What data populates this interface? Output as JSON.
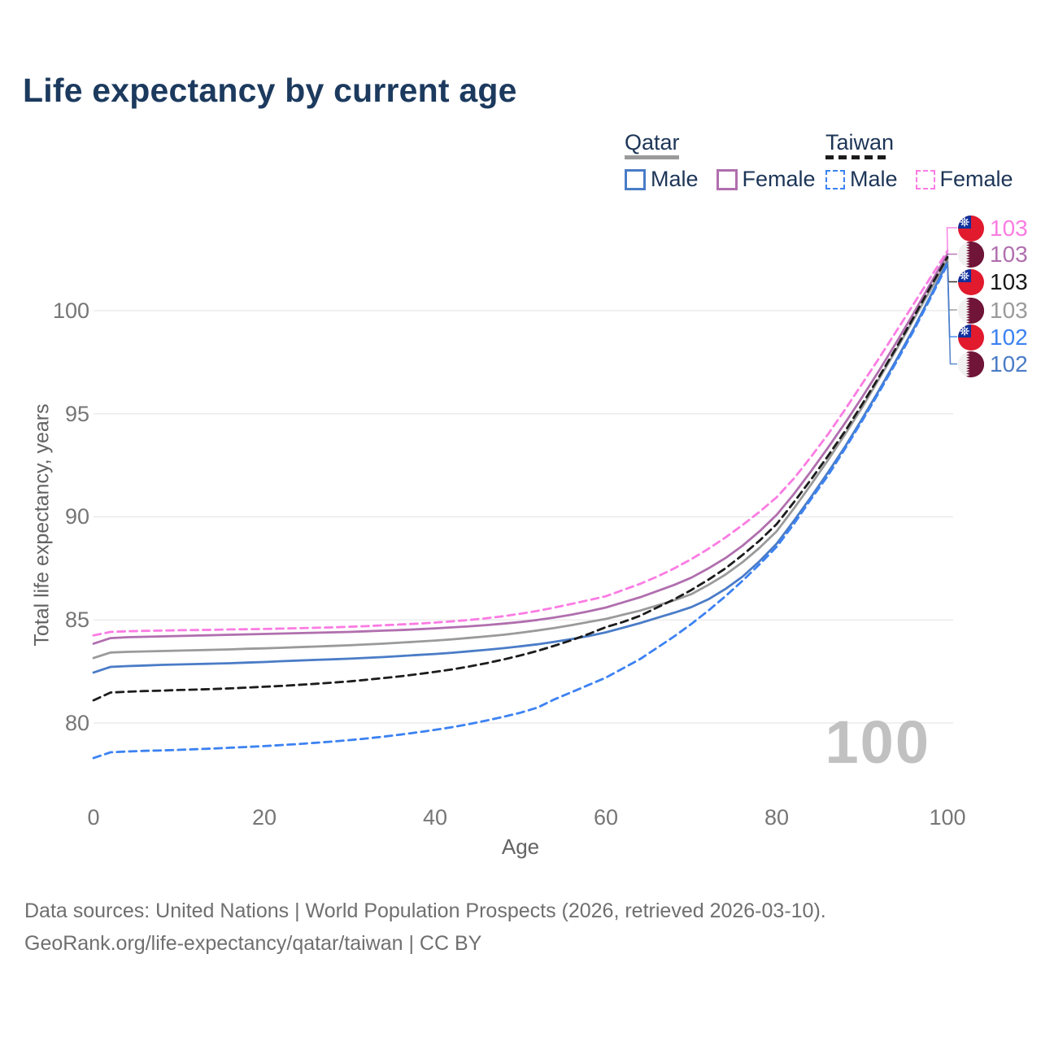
{
  "title": "Life expectancy by current age",
  "legend": {
    "qatar": {
      "country": "Qatar",
      "male_label": "Male",
      "female_label": "Female"
    },
    "taiwan": {
      "country": "Taiwan",
      "male_label": "Male",
      "female_label": "Female"
    }
  },
  "y_axis": {
    "label": "Total life expectancy, years",
    "ticks": [
      80,
      85,
      90,
      95,
      100
    ]
  },
  "x_axis": {
    "label": "Age",
    "ticks": [
      0,
      20,
      40,
      60,
      80,
      100
    ]
  },
  "watermark": "100",
  "end_labels": [
    {
      "flag": "taiwan",
      "value": "103",
      "color": "#fb7ce3",
      "series": "Taiwan Female"
    },
    {
      "flag": "qatar",
      "value": "103",
      "color": "#b06fae",
      "series": "Qatar Female"
    },
    {
      "flag": "taiwan",
      "value": "103",
      "color": "#1a1a1a",
      "series": "Taiwan Total"
    },
    {
      "flag": "qatar",
      "value": "103",
      "color": "#9a9a9a",
      "series": "Qatar Total"
    },
    {
      "flag": "taiwan",
      "value": "102",
      "color": "#3c82f2",
      "series": "Taiwan Male"
    },
    {
      "flag": "qatar",
      "value": "102",
      "color": "#4a7cc7",
      "series": "Qatar Male"
    }
  ],
  "footer": {
    "line1": "Data sources: United Nations | World Population Prospects (2026, retrieved 2026-03-10).",
    "line2": "GeoRank.org/life-expectancy/qatar/taiwan | CC BY"
  },
  "chart_data": {
    "type": "line",
    "title": "Life expectancy by current age",
    "xlabel": "Age",
    "ylabel": "Total life expectancy, years",
    "xlim": [
      0,
      100
    ],
    "ylim": [
      77.5,
      103.5
    ],
    "grid": "horizontal",
    "x": [
      0,
      2,
      4,
      6,
      8,
      10,
      12,
      14,
      16,
      18,
      20,
      22,
      24,
      26,
      28,
      30,
      32,
      34,
      36,
      38,
      40,
      42,
      44,
      46,
      48,
      50,
      52,
      54,
      56,
      58,
      60,
      62,
      64,
      66,
      68,
      70,
      72,
      74,
      76,
      78,
      80,
      82,
      84,
      86,
      88,
      90,
      92,
      94,
      96,
      98,
      100
    ],
    "series": [
      {
        "name": "Qatar Total",
        "country": "Qatar",
        "sex": "both",
        "dash": false,
        "color": "#9a9a9a",
        "values": [
          83.15,
          83.42,
          83.45,
          83.47,
          83.49,
          83.51,
          83.53,
          83.55,
          83.57,
          83.6,
          83.62,
          83.65,
          83.68,
          83.71,
          83.74,
          83.77,
          83.81,
          83.85,
          83.9,
          83.95,
          84.0,
          84.06,
          84.13,
          84.2,
          84.28,
          84.38,
          84.49,
          84.61,
          84.75,
          84.9,
          85.05,
          85.25,
          85.45,
          85.7,
          85.95,
          86.25,
          86.7,
          87.2,
          87.8,
          88.5,
          89.3,
          90.4,
          91.55,
          92.75,
          94.0,
          95.3,
          96.7,
          98.1,
          99.55,
          101.0,
          102.5
        ]
      },
      {
        "name": "Qatar Female",
        "country": "Qatar",
        "sex": "female",
        "dash": false,
        "color": "#b06fae",
        "values": [
          83.85,
          84.12,
          84.16,
          84.18,
          84.2,
          84.22,
          84.24,
          84.26,
          84.28,
          84.3,
          84.32,
          84.34,
          84.36,
          84.38,
          84.4,
          84.42,
          84.45,
          84.48,
          84.51,
          84.55,
          84.59,
          84.64,
          84.69,
          84.75,
          84.82,
          84.9,
          85.0,
          85.12,
          85.26,
          85.42,
          85.6,
          85.85,
          86.1,
          86.4,
          86.7,
          87.05,
          87.5,
          88.0,
          88.6,
          89.3,
          90.1,
          91.1,
          92.2,
          93.35,
          94.55,
          95.8,
          97.1,
          98.45,
          99.85,
          101.3,
          102.75
        ]
      },
      {
        "name": "Qatar Male",
        "country": "Qatar",
        "sex": "male",
        "dash": false,
        "color": "#4a7cc7",
        "values": [
          82.45,
          82.72,
          82.76,
          82.79,
          82.82,
          82.84,
          82.86,
          82.88,
          82.9,
          82.93,
          82.96,
          83.0,
          83.03,
          83.06,
          83.09,
          83.12,
          83.16,
          83.2,
          83.25,
          83.3,
          83.35,
          83.41,
          83.48,
          83.55,
          83.63,
          83.72,
          83.82,
          83.94,
          84.07,
          84.22,
          84.4,
          84.62,
          84.85,
          85.1,
          85.35,
          85.62,
          86.0,
          86.5,
          87.1,
          87.85,
          88.7,
          89.8,
          90.95,
          92.15,
          93.4,
          94.75,
          96.15,
          97.6,
          99.1,
          100.7,
          102.35
        ]
      },
      {
        "name": "Taiwan Total",
        "country": "Taiwan",
        "sex": "both",
        "dash": true,
        "color": "#1c1c1c",
        "values": [
          81.1,
          81.48,
          81.52,
          81.55,
          81.57,
          81.6,
          81.62,
          81.65,
          81.68,
          81.72,
          81.76,
          81.8,
          81.85,
          81.9,
          81.96,
          82.02,
          82.1,
          82.18,
          82.27,
          82.37,
          82.48,
          82.6,
          82.74,
          82.9,
          83.08,
          83.28,
          83.5,
          83.75,
          84.02,
          84.32,
          84.65,
          84.9,
          85.2,
          85.6,
          86.0,
          86.45,
          86.95,
          87.5,
          88.15,
          88.85,
          89.65,
          90.7,
          91.8,
          92.95,
          94.15,
          95.45,
          96.8,
          98.2,
          99.65,
          101.15,
          102.6
        ]
      },
      {
        "name": "Taiwan Female",
        "country": "Taiwan",
        "sex": "female",
        "dash": true,
        "color": "#fb7ce3",
        "values": [
          84.25,
          84.42,
          84.45,
          84.47,
          84.48,
          84.5,
          84.51,
          84.52,
          84.54,
          84.55,
          84.56,
          84.58,
          84.6,
          84.62,
          84.64,
          84.67,
          84.7,
          84.74,
          84.78,
          84.82,
          84.87,
          84.93,
          85.0,
          85.08,
          85.18,
          85.3,
          85.44,
          85.6,
          85.78,
          85.96,
          86.15,
          86.45,
          86.75,
          87.1,
          87.5,
          87.95,
          88.45,
          89.0,
          89.6,
          90.25,
          90.95,
          91.85,
          92.9,
          94.0,
          95.2,
          96.45,
          97.7,
          99.0,
          100.3,
          101.6,
          102.9
        ]
      },
      {
        "name": "Taiwan Male",
        "country": "Taiwan",
        "sex": "male",
        "dash": true,
        "color": "#3c82f2",
        "values": [
          78.3,
          78.58,
          78.62,
          78.65,
          78.67,
          78.7,
          78.73,
          78.76,
          78.8,
          78.84,
          78.88,
          78.93,
          78.98,
          79.04,
          79.1,
          79.17,
          79.25,
          79.34,
          79.44,
          79.55,
          79.67,
          79.8,
          79.95,
          80.12,
          80.3,
          80.5,
          80.75,
          81.15,
          81.5,
          81.85,
          82.2,
          82.65,
          83.1,
          83.65,
          84.2,
          84.8,
          85.45,
          86.15,
          86.9,
          87.7,
          88.55,
          89.65,
          90.85,
          92.0,
          93.3,
          94.65,
          96.05,
          97.5,
          99.0,
          100.6,
          102.25
        ]
      }
    ]
  }
}
